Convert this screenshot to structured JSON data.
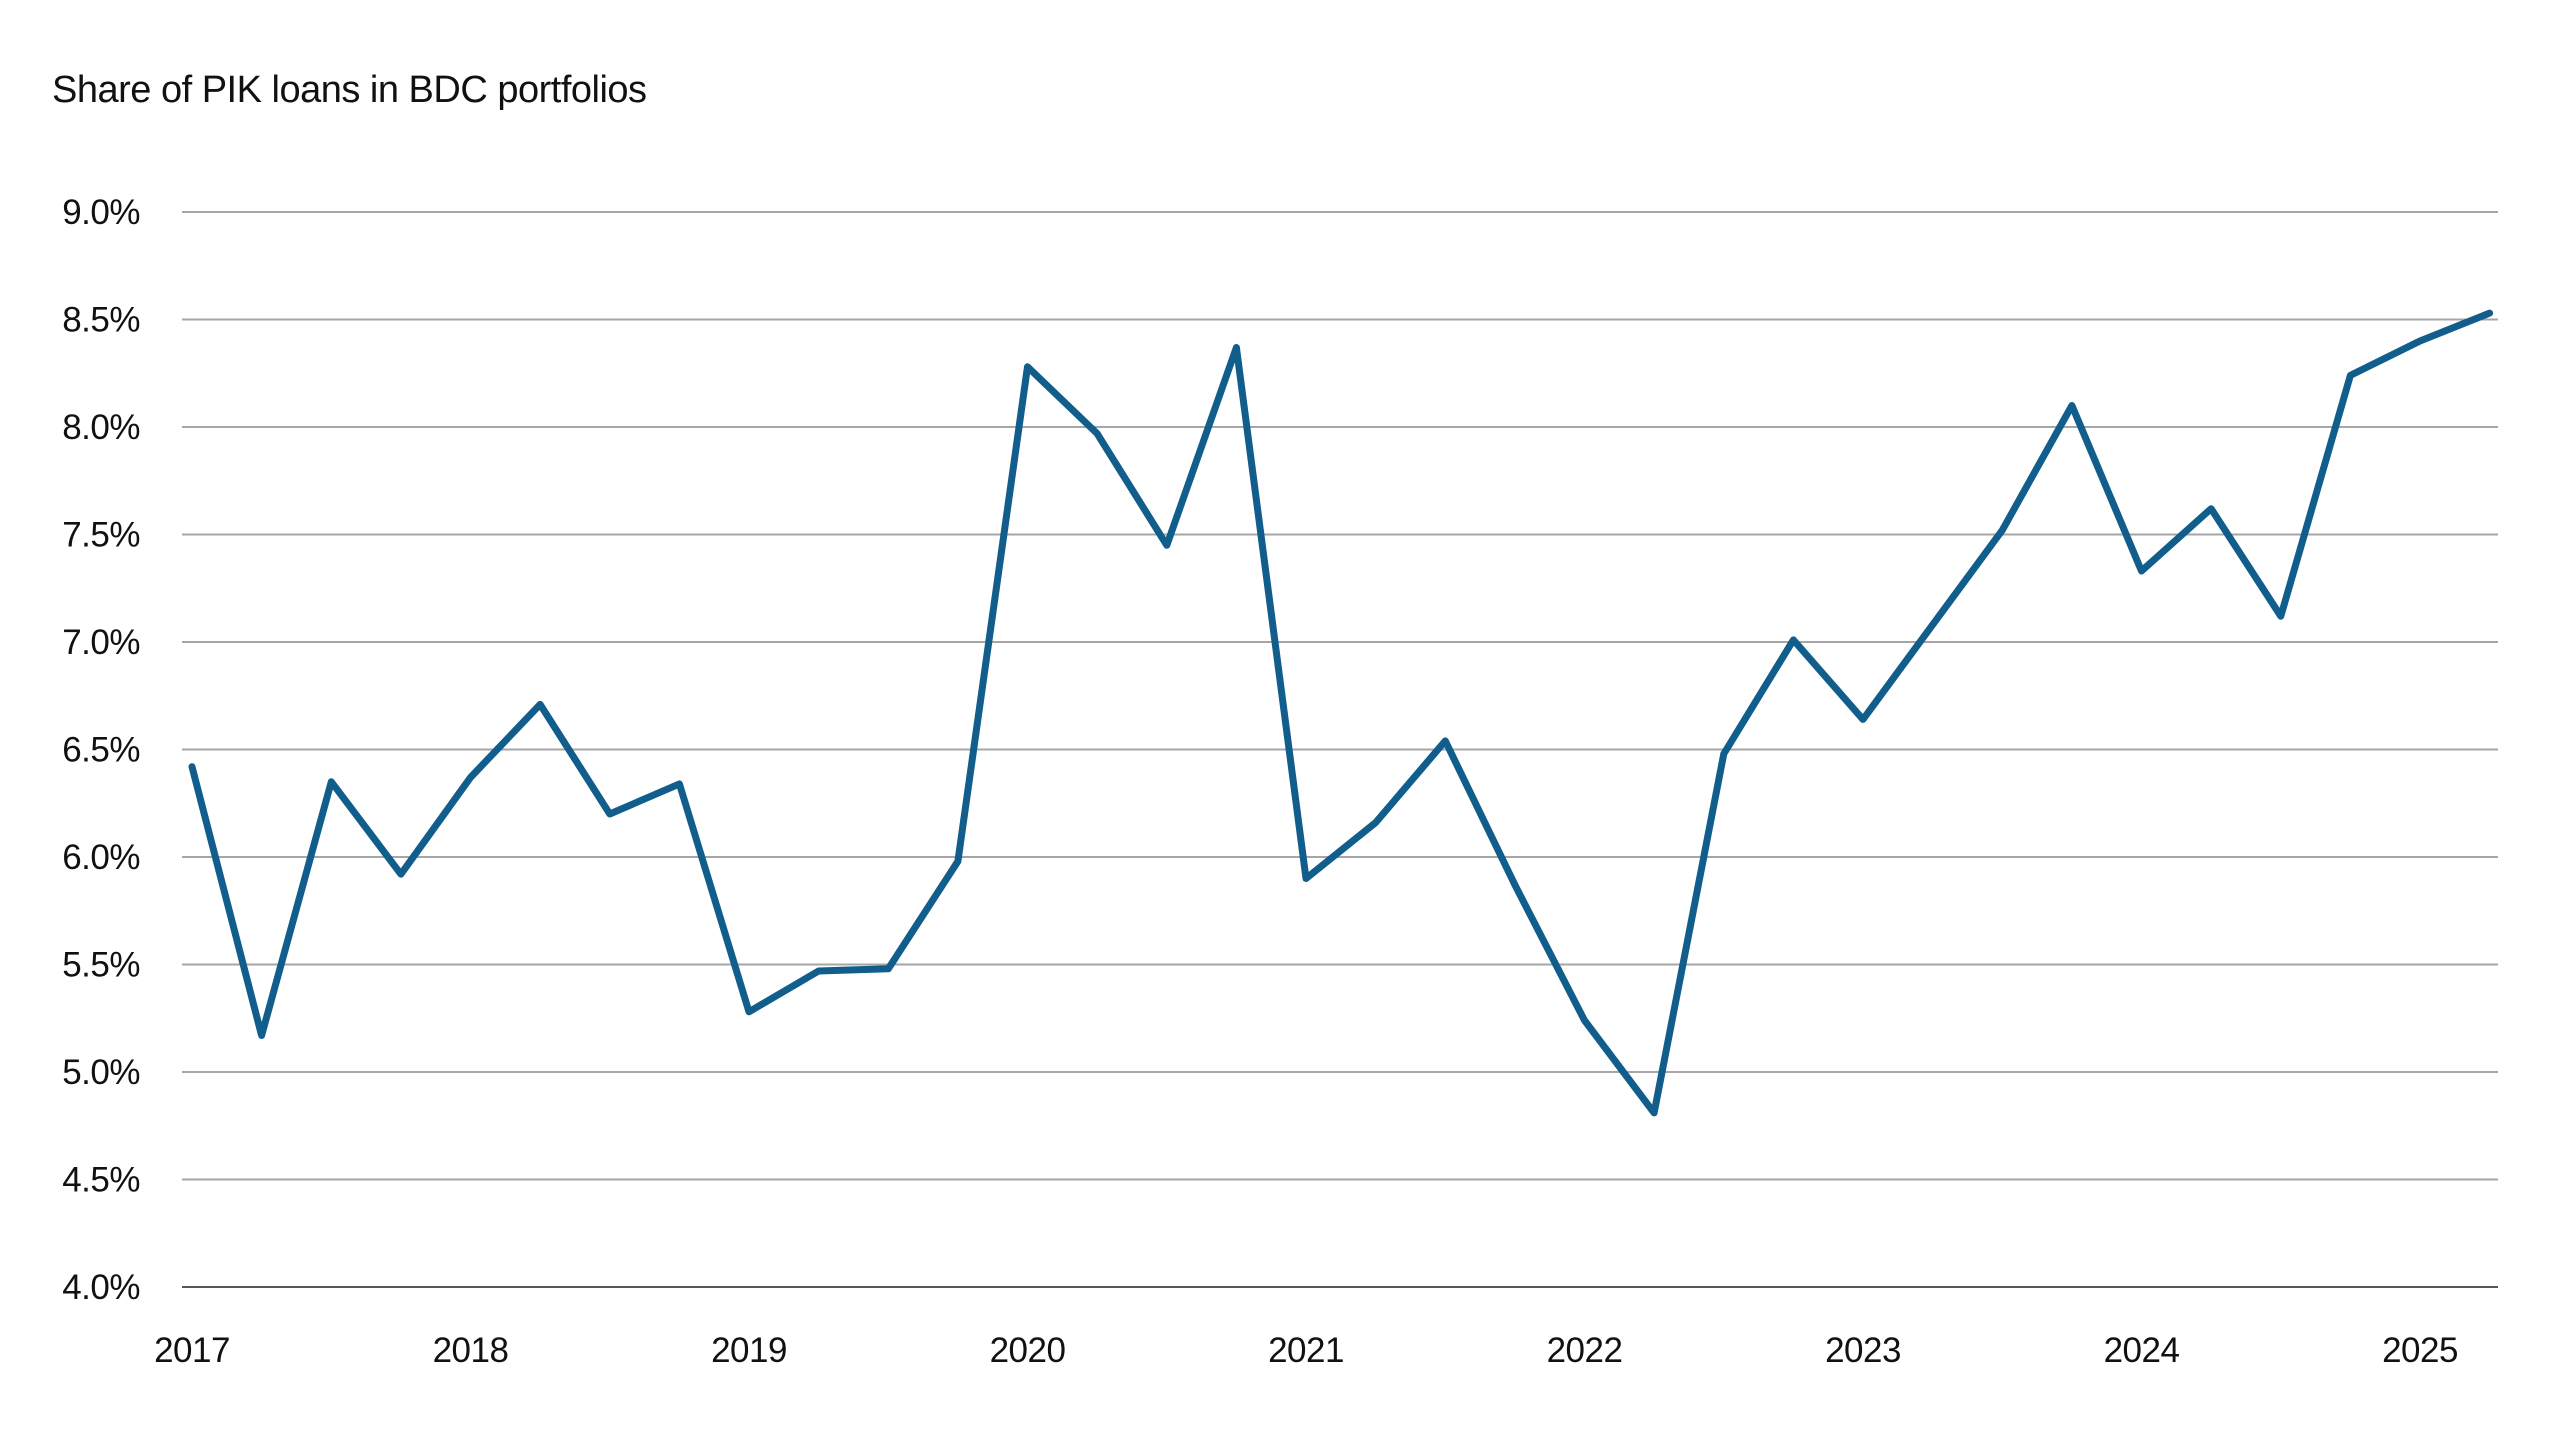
{
  "chart_data": {
    "type": "line",
    "title": "Share of PIK loans in BDC portfolios",
    "series": [
      {
        "name": "Share of PIK loans in BDC portfolios",
        "x": [
          2017.0,
          2017.25,
          2017.5,
          2017.75,
          2018.0,
          2018.25,
          2018.5,
          2018.75,
          2019.0,
          2019.25,
          2019.5,
          2019.75,
          2020.0,
          2020.25,
          2020.5,
          2020.75,
          2021.0,
          2021.25,
          2021.5,
          2021.75,
          2022.0,
          2022.25,
          2022.5,
          2022.75,
          2023.0,
          2023.25,
          2023.5,
          2023.75,
          2024.0,
          2024.25,
          2024.5,
          2024.75,
          2025.0,
          2025.25
        ],
        "values": [
          6.42,
          5.17,
          6.35,
          5.92,
          6.37,
          6.71,
          6.2,
          6.34,
          5.28,
          5.47,
          5.48,
          5.98,
          8.28,
          7.97,
          7.45,
          8.37,
          5.9,
          6.16,
          6.54,
          5.87,
          5.24,
          4.81,
          6.48,
          7.01,
          6.64,
          7.08,
          7.52,
          8.1,
          7.33,
          7.62,
          7.12,
          8.24,
          8.4,
          8.53
        ],
        "unit": "%"
      }
    ],
    "xlabel": "",
    "ylabel": "",
    "x_tick_labels": [
      "2017",
      "2018",
      "2019",
      "2020",
      "2021",
      "2022",
      "2023",
      "2024",
      "2025"
    ],
    "y_tick_labels": [
      "9.0%",
      "8.5%",
      "8.0%",
      "7.5%",
      "7.0%",
      "6.5%",
      "6.0%",
      "5.5%",
      "5.0%",
      "4.5%",
      "4.0%"
    ],
    "ylim": [
      4.0,
      9.0
    ],
    "y_step": 0.5,
    "grid": "horizontal",
    "legend_position": "none",
    "colors": {
      "line": "#115e8c",
      "gridline": "#a6a6a6",
      "baseline_axis": "#565656",
      "text": "#111111",
      "background": "#ffffff"
    }
  }
}
